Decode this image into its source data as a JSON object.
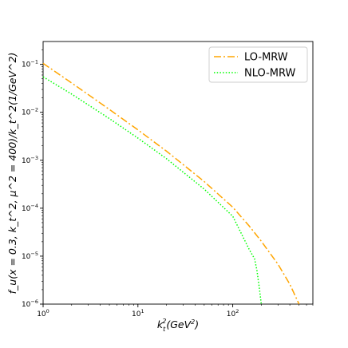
{
  "chart_data": {
    "type": "line",
    "title": "",
    "xlabel_main": "k",
    "xlabel_sub": "t",
    "xlabel_sup": "2",
    "xlabel_rest_a": "(GeV",
    "xlabel_rest_sup": "2",
    "xlabel_rest_b": ")",
    "ylabel": "f_u(x = 0.3, k_t^2, μ^2 = 400)/k_t^2(1/GeV^2)",
    "xscale": "log",
    "yscale": "log",
    "xlim": [
      1,
      700
    ],
    "ylim": [
      1e-06,
      0.3
    ],
    "xticks": [
      {
        "value": 1,
        "base": "10",
        "exp": "0"
      },
      {
        "value": 10,
        "base": "10",
        "exp": "1"
      },
      {
        "value": 100,
        "base": "10",
        "exp": "2"
      }
    ],
    "yticks": [
      {
        "value": 1e-06,
        "base": "10",
        "exp": "−6"
      },
      {
        "value": 1e-05,
        "base": "10",
        "exp": "−5"
      },
      {
        "value": 0.0001,
        "base": "10",
        "exp": "−4"
      },
      {
        "value": 0.001,
        "base": "10",
        "exp": "−3"
      },
      {
        "value": 0.01,
        "base": "10",
        "exp": "−2"
      },
      {
        "value": 0.1,
        "base": "10",
        "exp": "−1"
      }
    ],
    "legend_position": "top-right",
    "grid": false,
    "series": [
      {
        "name": "LO-MRW",
        "color": "#ffa500",
        "style": "dashdot",
        "x": [
          1,
          2,
          5,
          10,
          20,
          50,
          100,
          150,
          200,
          300,
          400,
          500
        ],
        "y": [
          0.105,
          0.041,
          0.0115,
          0.0043,
          0.00155,
          0.00036,
          0.000105,
          4.2e-05,
          2.05e-05,
          6.8e-06,
          2.6e-06,
          1e-06
        ]
      },
      {
        "name": "NLO-MRW",
        "color": "#00ff00",
        "style": "dotted",
        "x": [
          1,
          2,
          5,
          10,
          20,
          50,
          100,
          150,
          170,
          180,
          190,
          200
        ],
        "y": [
          0.055,
          0.024,
          0.0074,
          0.0029,
          0.00108,
          0.00025,
          6.8e-05,
          1.35e-05,
          8.8e-06,
          5e-06,
          2.3e-06,
          1e-06
        ]
      }
    ]
  }
}
